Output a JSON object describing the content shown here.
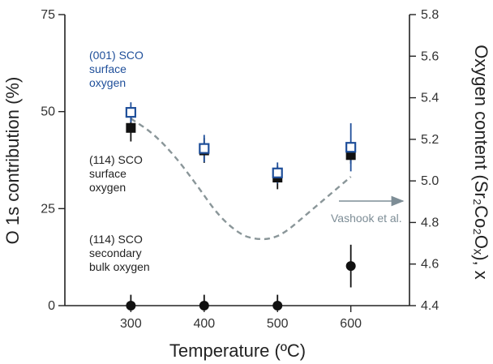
{
  "chart_data": {
    "type": "scatter",
    "xlabel": "Temperature (ºC)",
    "ylabel_left": "O 1s contribution (%)",
    "ylabel_right": "Oxygen content (Sr₂Co₂Oₓ), x",
    "x_ticks": [
      300,
      400,
      500,
      600
    ],
    "xlim": [
      210,
      680
    ],
    "y_left_ticks": [
      0,
      25,
      50,
      75
    ],
    "y_left_lim": [
      0,
      75
    ],
    "y_right_ticks": [
      4.4,
      4.6,
      4.8,
      5.0,
      5.2,
      5.4,
      5.6,
      5.8
    ],
    "y_right_tick_labels": [
      "4.4",
      "4.6",
      "4.8",
      "5.0",
      "5.2",
      "5.4",
      "5.6",
      "5.8"
    ],
    "y_right_lim": [
      4.4,
      5.8
    ],
    "grid": false,
    "colors": {
      "blue": "#1f4f9a",
      "black": "#111111",
      "dashed": "#8a9699",
      "arrow": "#7d8d96",
      "axis": "#222222"
    },
    "series": [
      {
        "name": "(001) SCO surface oxygen",
        "marker": "open-square",
        "color": "#1f4f9a",
        "x": [
          300,
          400,
          500,
          600
        ],
        "y": [
          49.8,
          40.5,
          34.2,
          40.8
        ],
        "err": [
          2.6,
          3.5,
          2.7,
          6.2
        ]
      },
      {
        "name": "(114) SCO surface oxygen",
        "marker": "filled-square",
        "color": "#111111",
        "x": [
          300,
          400,
          500,
          600
        ],
        "y": [
          45.8,
          40.0,
          33.0,
          38.8
        ],
        "err": [
          3.5,
          3.2,
          3.0,
          2.2
        ]
      },
      {
        "name": "(114) SCO secondary bulk oxygen",
        "marker": "filled-circle",
        "color": "#111111",
        "x": [
          300,
          400,
          500,
          600
        ],
        "y": [
          0,
          0,
          0,
          10.2
        ],
        "err": [
          2.8,
          2.8,
          2.8,
          5.5
        ]
      }
    ],
    "reference_curve": {
      "name": "Vashook et al.",
      "axis": "right",
      "style": "dashed",
      "x": [
        300,
        330,
        360,
        390,
        420,
        450,
        470,
        490,
        510,
        540,
        570,
        600
      ],
      "y": [
        5.3,
        5.23,
        5.12,
        4.98,
        4.83,
        4.74,
        4.72,
        4.72,
        4.75,
        4.84,
        4.93,
        5.02
      ]
    },
    "annotations": [
      {
        "id": "ann1",
        "lines": [
          "(001) SCO",
          "surface",
          "oxygen"
        ],
        "color": "#1f4f9a"
      },
      {
        "id": "ann2",
        "lines": [
          "(114) SCO",
          "surface",
          "oxygen"
        ],
        "color": "#222222"
      },
      {
        "id": "ann3",
        "lines": [
          "(114) SCO",
          "secondary",
          "bulk oxygen"
        ],
        "color": "#222222"
      },
      {
        "id": "ann4",
        "lines": [
          "Vashook et al."
        ],
        "color": "#7d8d96"
      }
    ]
  }
}
